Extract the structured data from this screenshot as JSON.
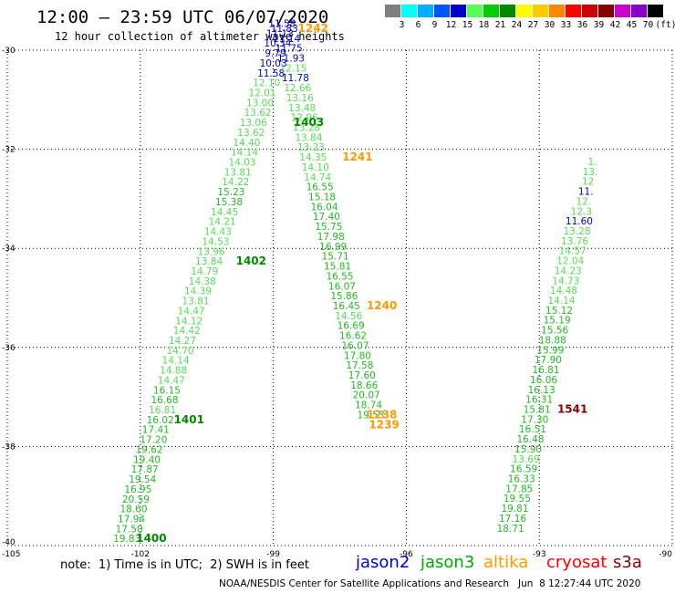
{
  "header": {
    "title": "12:00 – 23:59 UTC 06/07/2020",
    "subtitle": "12 hour collection of altimeter wave heights"
  },
  "scale": {
    "unit_label": "(ft)",
    "bins": [
      {
        "label": "",
        "color": "#7f7f7f"
      },
      {
        "label": "3",
        "color": "#00ffff"
      },
      {
        "label": "6",
        "color": "#00b0ff"
      },
      {
        "label": "9",
        "color": "#0055ff"
      },
      {
        "label": "12",
        "color": "#0000cc"
      },
      {
        "label": "15",
        "color": "#55ff55"
      },
      {
        "label": "18",
        "color": "#00cc00"
      },
      {
        "label": "21",
        "color": "#008800"
      },
      {
        "label": "24",
        "color": "#ffff00"
      },
      {
        "label": "27",
        "color": "#ffcc00"
      },
      {
        "label": "30",
        "color": "#ff8800"
      },
      {
        "label": "33",
        "color": "#ff0000"
      },
      {
        "label": "36",
        "color": "#cc0000"
      },
      {
        "label": "39",
        "color": "#880000"
      },
      {
        "label": "42",
        "color": "#cc00cc"
      },
      {
        "label": "45",
        "color": "#8800cc"
      },
      {
        "label": "70",
        "color": "#000000"
      }
    ]
  },
  "axes": {
    "x_ticks": [
      "-105",
      "-102",
      "-99",
      "-96",
      "-93",
      "-90"
    ],
    "y_ticks": [
      "-30",
      "-32",
      "-34",
      "-36",
      "-38",
      "-40"
    ]
  },
  "colors": {
    "green_light": "#55dd55",
    "green_mid": "#22bb22",
    "green_dark": "#008800",
    "blue": "#0000cc",
    "orange": "#ff9900",
    "darkred": "#880000"
  },
  "tracks": [
    {
      "name": "pass-1400-1403",
      "points": [
        {
          "text": "19.83",
          "lon": -102.3,
          "lat": -39.93,
          "c": "green_mid"
        },
        {
          "text": "17.50",
          "lon": -102.25,
          "lat": -39.73,
          "c": "green_mid"
        },
        {
          "text": "17.94",
          "lon": -102.2,
          "lat": -39.53,
          "c": "green_mid"
        },
        {
          "text": "18.60",
          "lon": -102.15,
          "lat": -39.33,
          "c": "green_mid"
        },
        {
          "text": "20.59",
          "lon": -102.1,
          "lat": -39.13,
          "c": "green_mid"
        },
        {
          "text": "16.95",
          "lon": -102.05,
          "lat": -38.93,
          "c": "green_mid"
        },
        {
          "text": "19.54",
          "lon": -101.95,
          "lat": -38.73,
          "c": "green_mid"
        },
        {
          "text": "17.87",
          "lon": -101.9,
          "lat": -38.53,
          "c": "green_mid"
        },
        {
          "text": "19.40",
          "lon": -101.85,
          "lat": -38.33,
          "c": "green_mid"
        },
        {
          "text": "19.62",
          "lon": -101.8,
          "lat": -38.13,
          "c": "green_mid"
        },
        {
          "text": "17.20",
          "lon": -101.7,
          "lat": -37.93,
          "c": "green_mid"
        },
        {
          "text": "17.41",
          "lon": -101.65,
          "lat": -37.73,
          "c": "green_mid"
        },
        {
          "text": "16.02",
          "lon": -101.55,
          "lat": -37.53,
          "c": "green_mid"
        },
        {
          "text": "16.81",
          "lon": -101.5,
          "lat": -37.33,
          "c": "green_light"
        },
        {
          "text": "16.68",
          "lon": -101.45,
          "lat": -37.13,
          "c": "green_mid"
        },
        {
          "text": "16.15",
          "lon": -101.4,
          "lat": -36.93,
          "c": "green_mid"
        },
        {
          "text": "14.47",
          "lon": -101.3,
          "lat": -36.73,
          "c": "green_light"
        },
        {
          "text": "14.88",
          "lon": -101.25,
          "lat": -36.53,
          "c": "green_light"
        },
        {
          "text": "14.14",
          "lon": -101.2,
          "lat": -36.33,
          "c": "green_light"
        },
        {
          "text": "14.70",
          "lon": -101.1,
          "lat": -36.13,
          "c": "green_light"
        },
        {
          "text": "14.27",
          "lon": -101.05,
          "lat": -35.93,
          "c": "green_light"
        },
        {
          "text": "14.42",
          "lon": -100.95,
          "lat": -35.73,
          "c": "green_light"
        },
        {
          "text": "14.12",
          "lon": -100.9,
          "lat": -35.53,
          "c": "green_light"
        },
        {
          "text": "14.47",
          "lon": -100.85,
          "lat": -35.33,
          "c": "green_light"
        },
        {
          "text": "13.81",
          "lon": -100.75,
          "lat": -35.13,
          "c": "green_light"
        },
        {
          "text": "14.39",
          "lon": -100.7,
          "lat": -34.93,
          "c": "green_light"
        },
        {
          "text": "14.38",
          "lon": -100.6,
          "lat": -34.73,
          "c": "green_light"
        },
        {
          "text": "14.79",
          "lon": -100.55,
          "lat": -34.53,
          "c": "green_light"
        },
        {
          "text": "13.84",
          "lon": -100.45,
          "lat": -34.33,
          "c": "green_light"
        },
        {
          "text": "13.96",
          "lon": -100.4,
          "lat": -34.13,
          "c": "green_light"
        },
        {
          "text": "14.53",
          "lon": -100.3,
          "lat": -33.93,
          "c": "green_light"
        },
        {
          "text": "14.43",
          "lon": -100.25,
          "lat": -33.73,
          "c": "green_light"
        },
        {
          "text": "14.21",
          "lon": -100.15,
          "lat": -33.53,
          "c": "green_light"
        },
        {
          "text": "14.45",
          "lon": -100.1,
          "lat": -33.33,
          "c": "green_light"
        },
        {
          "text": "15.38",
          "lon": -100.0,
          "lat": -33.13,
          "c": "green_mid"
        },
        {
          "text": "15.23",
          "lon": -99.95,
          "lat": -32.93,
          "c": "green_mid"
        },
        {
          "text": "14.22",
          "lon": -99.85,
          "lat": -32.73,
          "c": "green_light"
        },
        {
          "text": "13.81",
          "lon": -99.8,
          "lat": -32.53,
          "c": "green_light"
        },
        {
          "text": "14.03",
          "lon": -99.7,
          "lat": -32.33,
          "c": "green_light"
        },
        {
          "text": "14.14",
          "lon": -99.65,
          "lat": -32.13,
          "c": "green_light"
        },
        {
          "text": "14.40",
          "lon": -99.6,
          "lat": -31.93,
          "c": "green_light"
        },
        {
          "text": "13.62",
          "lon": -99.5,
          "lat": -31.73,
          "c": "green_light"
        },
        {
          "text": "13.06",
          "lon": -99.45,
          "lat": -31.53,
          "c": "green_light"
        },
        {
          "text": "13.62",
          "lon": -99.35,
          "lat": -31.33,
          "c": "green_light"
        },
        {
          "text": "13.00",
          "lon": -99.3,
          "lat": -31.13,
          "c": "green_light"
        },
        {
          "text": "12.01",
          "lon": -99.25,
          "lat": -30.93,
          "c": "green_light"
        },
        {
          "text": "12.10",
          "lon": -99.15,
          "lat": -30.73,
          "c": "green_light"
        },
        {
          "text": "11.58",
          "lon": -99.05,
          "lat": -30.53,
          "c": "blue"
        },
        {
          "text": "10.03",
          "lon": -99.0,
          "lat": -30.33,
          "c": "blue"
        },
        {
          "text": "9.79",
          "lon": -98.95,
          "lat": -30.13,
          "c": "blue"
        },
        {
          "text": "10.34",
          "lon": -98.9,
          "lat": -29.93,
          "c": "blue"
        },
        {
          "text": "11.13",
          "lon": -98.85,
          "lat": -29.73,
          "c": "blue"
        },
        {
          "text": "11.58",
          "lon": -98.8,
          "lat": -29.53,
          "c": "blue"
        }
      ]
    },
    {
      "name": "pass-1242-1239",
      "points": [
        {
          "text": "11.83",
          "lon": -98.75,
          "lat": -29.63,
          "c": "blue"
        },
        {
          "text": "11.14",
          "lon": -98.7,
          "lat": -29.83,
          "c": "blue"
        },
        {
          "text": "11.75",
          "lon": -98.65,
          "lat": -30.03,
          "c": "blue"
        },
        {
          "text": "11.93",
          "lon": -98.6,
          "lat": -30.23,
          "c": "blue"
        },
        {
          "text": "12.15",
          "lon": -98.55,
          "lat": -30.43,
          "c": "green_light"
        },
        {
          "text": "11.78",
          "lon": -98.5,
          "lat": -30.63,
          "c": "blue"
        },
        {
          "text": "12.66",
          "lon": -98.45,
          "lat": -30.83,
          "c": "green_light"
        },
        {
          "text": "13.16",
          "lon": -98.4,
          "lat": -31.03,
          "c": "green_light"
        },
        {
          "text": "13.48",
          "lon": -98.35,
          "lat": -31.23,
          "c": "green_light"
        },
        {
          "text": "12.96",
          "lon": -98.3,
          "lat": -31.43,
          "c": "green_light"
        },
        {
          "text": "13.28",
          "lon": -98.25,
          "lat": -31.63,
          "c": "green_light"
        },
        {
          "text": "13.84",
          "lon": -98.2,
          "lat": -31.83,
          "c": "green_light"
        },
        {
          "text": "13.23",
          "lon": -98.15,
          "lat": -32.03,
          "c": "green_light"
        },
        {
          "text": "14.35",
          "lon": -98.1,
          "lat": -32.23,
          "c": "green_light"
        },
        {
          "text": "14.10",
          "lon": -98.05,
          "lat": -32.43,
          "c": "green_light"
        },
        {
          "text": "14.74",
          "lon": -98.0,
          "lat": -32.63,
          "c": "green_light"
        },
        {
          "text": "16.55",
          "lon": -97.95,
          "lat": -32.83,
          "c": "green_mid"
        },
        {
          "text": "15.18",
          "lon": -97.9,
          "lat": -33.03,
          "c": "green_mid"
        },
        {
          "text": "16.04",
          "lon": -97.85,
          "lat": -33.23,
          "c": "green_mid"
        },
        {
          "text": "17.40",
          "lon": -97.8,
          "lat": -33.43,
          "c": "green_mid"
        },
        {
          "text": "15.75",
          "lon": -97.75,
          "lat": -33.63,
          "c": "green_mid"
        },
        {
          "text": "17.98",
          "lon": -97.7,
          "lat": -33.83,
          "c": "green_mid"
        },
        {
          "text": "16.99",
          "lon": -97.65,
          "lat": -34.03,
          "c": "green_mid"
        },
        {
          "text": "15.71",
          "lon": -97.6,
          "lat": -34.23,
          "c": "green_mid"
        },
        {
          "text": "15.81",
          "lon": -97.55,
          "lat": -34.43,
          "c": "green_mid"
        },
        {
          "text": "16.55",
          "lon": -97.5,
          "lat": -34.63,
          "c": "green_mid"
        },
        {
          "text": "16.07",
          "lon": -97.45,
          "lat": -34.83,
          "c": "green_mid"
        },
        {
          "text": "15.86",
          "lon": -97.4,
          "lat": -35.03,
          "c": "green_mid"
        },
        {
          "text": "16.45",
          "lon": -97.35,
          "lat": -35.23,
          "c": "green_mid"
        },
        {
          "text": "14.56",
          "lon": -97.3,
          "lat": -35.43,
          "c": "green_light"
        },
        {
          "text": "16.69",
          "lon": -97.25,
          "lat": -35.63,
          "c": "green_mid"
        },
        {
          "text": "16.62",
          "lon": -97.2,
          "lat": -35.83,
          "c": "green_mid"
        },
        {
          "text": "16.07",
          "lon": -97.15,
          "lat": -36.03,
          "c": "green_mid"
        },
        {
          "text": "17.80",
          "lon": -97.1,
          "lat": -36.23,
          "c": "green_mid"
        },
        {
          "text": "17.58",
          "lon": -97.05,
          "lat": -36.43,
          "c": "green_mid"
        },
        {
          "text": "17.60",
          "lon": -97.0,
          "lat": -36.63,
          "c": "green_mid"
        },
        {
          "text": "18.66",
          "lon": -96.95,
          "lat": -36.83,
          "c": "green_mid"
        },
        {
          "text": "20.07",
          "lon": -96.9,
          "lat": -37.03,
          "c": "green_mid"
        },
        {
          "text": "18.74",
          "lon": -96.85,
          "lat": -37.23,
          "c": "green_mid"
        },
        {
          "text": "19.53",
          "lon": -96.8,
          "lat": -37.43,
          "c": "green_mid"
        }
      ]
    },
    {
      "name": "pass-1541",
      "points": [
        {
          "text": "18.71",
          "lon": -93.65,
          "lat": -39.72,
          "c": "green_mid"
        },
        {
          "text": "17.16",
          "lon": -93.6,
          "lat": -39.52,
          "c": "green_mid"
        },
        {
          "text": "19.81",
          "lon": -93.55,
          "lat": -39.32,
          "c": "green_mid"
        },
        {
          "text": "19.55",
          "lon": -93.5,
          "lat": -39.12,
          "c": "green_mid"
        },
        {
          "text": "17.85",
          "lon": -93.45,
          "lat": -38.92,
          "c": "green_mid"
        },
        {
          "text": "16.33",
          "lon": -93.4,
          "lat": -38.72,
          "c": "green_mid"
        },
        {
          "text": "16.59",
          "lon": -93.35,
          "lat": -38.52,
          "c": "green_mid"
        },
        {
          "text": "13.69",
          "lon": -93.3,
          "lat": -38.32,
          "c": "green_light"
        },
        {
          "text": "15.90",
          "lon": -93.25,
          "lat": -38.12,
          "c": "green_mid"
        },
        {
          "text": "16.48",
          "lon": -93.2,
          "lat": -37.92,
          "c": "green_mid"
        },
        {
          "text": "16.51",
          "lon": -93.15,
          "lat": -37.72,
          "c": "green_mid"
        },
        {
          "text": "17.30",
          "lon": -93.1,
          "lat": -37.52,
          "c": "green_mid"
        },
        {
          "text": "15.81",
          "lon": -93.05,
          "lat": -37.32,
          "c": "green_mid"
        },
        {
          "text": "16.31",
          "lon": -93.0,
          "lat": -37.12,
          "c": "green_mid"
        },
        {
          "text": "16.13",
          "lon": -92.95,
          "lat": -36.92,
          "c": "green_mid"
        },
        {
          "text": "16.06",
          "lon": -92.9,
          "lat": -36.72,
          "c": "green_mid"
        },
        {
          "text": "16.81",
          "lon": -92.85,
          "lat": -36.52,
          "c": "green_mid"
        },
        {
          "text": "17.90",
          "lon": -92.8,
          "lat": -36.32,
          "c": "green_mid"
        },
        {
          "text": "15.99",
          "lon": -92.75,
          "lat": -36.12,
          "c": "green_mid"
        },
        {
          "text": "18.88",
          "lon": -92.7,
          "lat": -35.92,
          "c": "green_mid"
        },
        {
          "text": "15.56",
          "lon": -92.65,
          "lat": -35.72,
          "c": "green_mid"
        },
        {
          "text": "15.19",
          "lon": -92.6,
          "lat": -35.52,
          "c": "green_mid"
        },
        {
          "text": "15.12",
          "lon": -92.55,
          "lat": -35.32,
          "c": "green_mid"
        },
        {
          "text": "14.14",
          "lon": -92.5,
          "lat": -35.12,
          "c": "green_light"
        },
        {
          "text": "14.48",
          "lon": -92.45,
          "lat": -34.92,
          "c": "green_light"
        },
        {
          "text": "14.73",
          "lon": -92.4,
          "lat": -34.72,
          "c": "green_light"
        },
        {
          "text": "14.23",
          "lon": -92.35,
          "lat": -34.52,
          "c": "green_light"
        },
        {
          "text": "12.04",
          "lon": -92.3,
          "lat": -34.32,
          "c": "green_light"
        },
        {
          "text": "14.57",
          "lon": -92.25,
          "lat": -34.12,
          "c": "green_light"
        },
        {
          "text": "13.76",
          "lon": -92.2,
          "lat": -33.92,
          "c": "green_light"
        },
        {
          "text": "13.28",
          "lon": -92.15,
          "lat": -33.72,
          "c": "green_light"
        },
        {
          "text": "11.60",
          "lon": -92.1,
          "lat": -33.52,
          "c": "blue"
        },
        {
          "text": "12.3",
          "lon": -92.05,
          "lat": -33.32,
          "c": "green_light"
        },
        {
          "text": "12.",
          "lon": -92.0,
          "lat": -33.12,
          "c": "green_light"
        },
        {
          "text": "11.",
          "lon": -91.95,
          "lat": -32.92,
          "c": "blue"
        },
        {
          "text": "12",
          "lon": -91.9,
          "lat": -32.72,
          "c": "green_light"
        },
        {
          "text": "13.",
          "lon": -91.85,
          "lat": -32.52,
          "c": "green_light"
        },
        {
          "text": "1.",
          "lon": -91.8,
          "lat": -32.32,
          "c": "green_light"
        }
      ]
    }
  ],
  "pass_labels": [
    {
      "text": "1400",
      "lon": -101.75,
      "lat": -39.93,
      "c": "green_dark"
    },
    {
      "text": "1401",
      "lon": -100.9,
      "lat": -37.53,
      "c": "green_dark"
    },
    {
      "text": "1402",
      "lon": -99.5,
      "lat": -34.33,
      "c": "green_dark"
    },
    {
      "text": "1403",
      "lon": -98.2,
      "lat": -31.53,
      "c": "green_dark"
    },
    {
      "text": "1242",
      "lon": -98.1,
      "lat": -29.63,
      "c": "orange"
    },
    {
      "text": "1241",
      "lon": -97.1,
      "lat": -32.23,
      "c": "orange"
    },
    {
      "text": "1240",
      "lon": -96.55,
      "lat": -35.23,
      "c": "orange"
    },
    {
      "text": "1239",
      "lon": -96.5,
      "lat": -37.63,
      "c": "orange"
    },
    {
      "text": "1238",
      "lon": -96.55,
      "lat": -37.43,
      "c": "orange"
    },
    {
      "text": "1541",
      "lon": -92.25,
      "lat": -37.32,
      "c": "darkred"
    }
  ],
  "note": {
    "text": "note:  1) Time is in UTC;  2) SWH is in feet",
    "satellites": [
      {
        "label": "jason2",
        "color": "#0000cc"
      },
      {
        "label": "jason3",
        "color": "#00aa00"
      },
      {
        "label": "altika",
        "color": "#ff9900"
      },
      {
        "label": "cryosat",
        "color": "#ff0000"
      },
      {
        "label": "s3a",
        "color": "#880000"
      }
    ]
  },
  "credit": "NOAA/NESDIS Center for Satellite Applications and Research   Jun  8 12:27:44 UTC 2020"
}
